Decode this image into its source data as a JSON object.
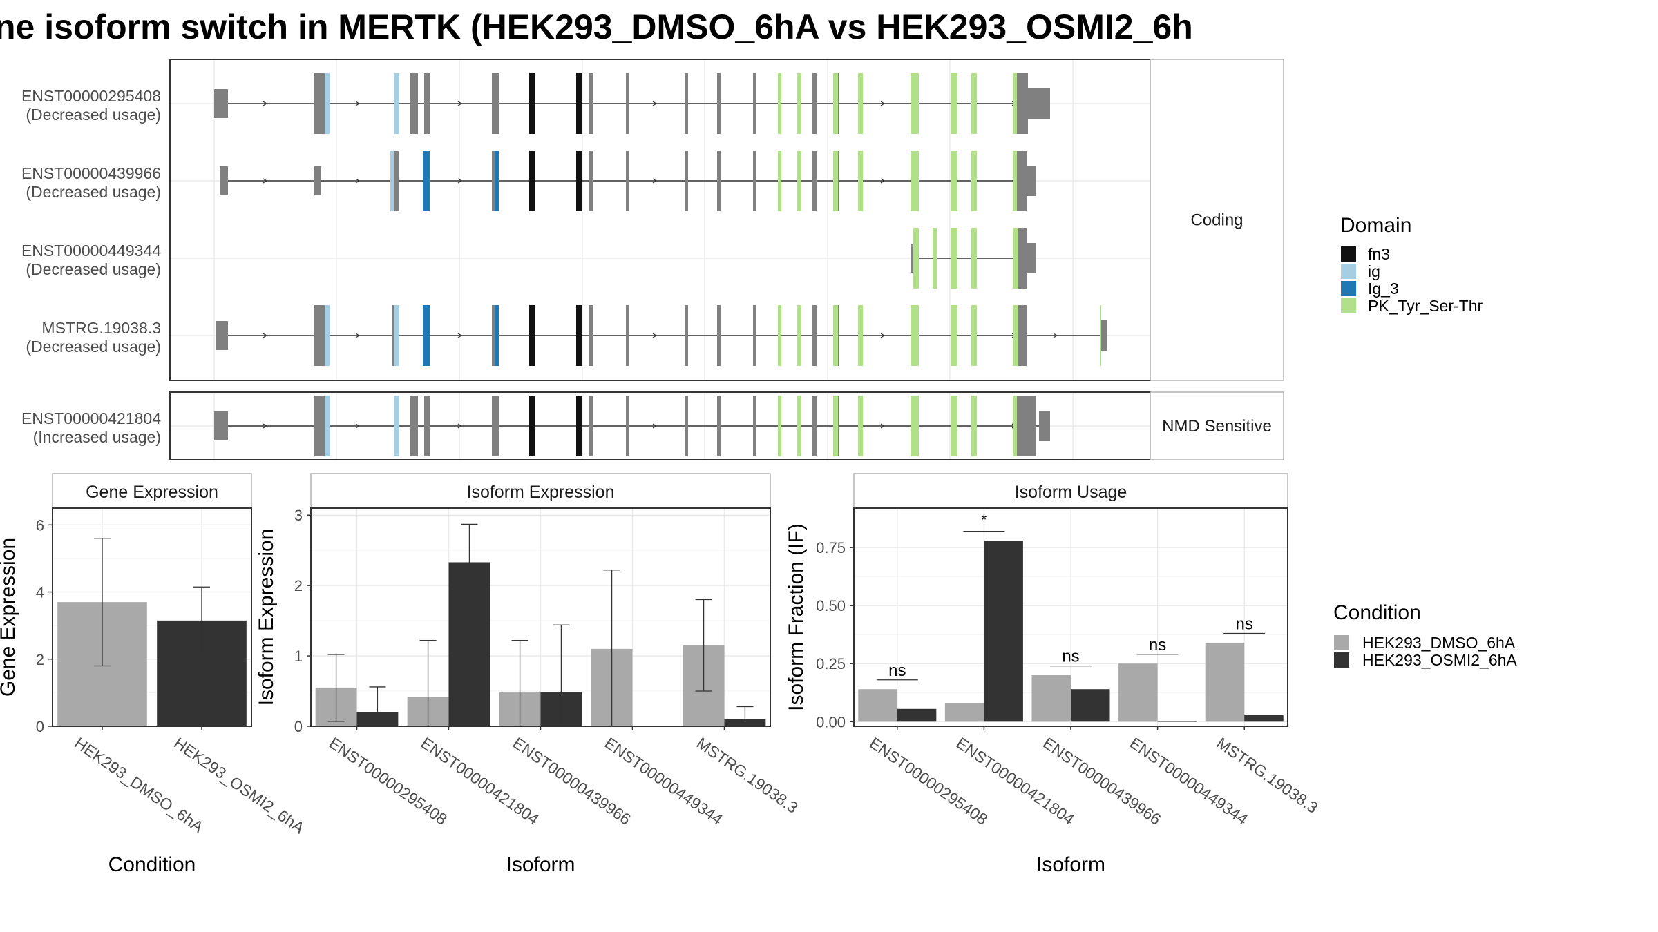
{
  "page": {
    "title": "ne isoform switch in MERTK (HEK293_DMSO_6hA vs HEK293_OSMI2_6h"
  },
  "colors": {
    "exon": "#808080",
    "fn3": "#111111",
    "ig": "#a6cee3",
    "Ig_3": "#1f78b4",
    "PK_Tyr_Ser-Thr": "#b2df8a",
    "dmso": "#a9a9a9",
    "osmi2": "#333333",
    "grid": "#ebebeb",
    "strip_bg": "#ffffff"
  },
  "transcript_panel": {
    "groups": [
      {
        "label": "Coding",
        "tracks": [
          {
            "name": "ENST00000295408",
            "usage": "(Decreased usage)"
          },
          {
            "name": "ENST00000439966",
            "usage": "(Decreased usage)"
          },
          {
            "name": "ENST00000449344",
            "usage": "(Decreased usage)"
          },
          {
            "name": "MSTRG.19038.3",
            "usage": "(Decreased usage)"
          }
        ]
      },
      {
        "label": "NMD Sensitive",
        "tracks": [
          {
            "name": "ENST00000421804",
            "usage": "(Increased usage)"
          }
        ]
      }
    ],
    "domain_legend": {
      "title": "Domain",
      "items": [
        "fn3",
        "ig",
        "Ig_3",
        "PK_Tyr_Ser-Thr"
      ]
    }
  },
  "chart_data": [
    {
      "type": "bar",
      "title": "Gene Expression",
      "xlabel": "Condition",
      "ylabel": "Gene Expression",
      "categories": [
        "HEK293_DMSO_6hA",
        "HEK293_OSMI2_6hA"
      ],
      "values": [
        3.7,
        3.15
      ],
      "errors": [
        [
          1.8,
          5.6
        ],
        [
          2.15,
          4.15
        ]
      ],
      "ylim": [
        0,
        6.5
      ],
      "yticks": [
        "0",
        "2",
        "4",
        "6"
      ],
      "grid": true
    },
    {
      "type": "bar",
      "title": "Isoform Expression",
      "xlabel": "Isoform",
      "ylabel": "Isoform Expression",
      "categories": [
        "ENST00000295408",
        "ENST00000421804",
        "ENST00000439966",
        "ENST00000449344",
        "MSTRG.19038.3"
      ],
      "series": [
        {
          "name": "HEK293_DMSO_6hA",
          "values": [
            0.55,
            0.42,
            0.48,
            1.1,
            1.15
          ],
          "errors": [
            [
              0.07,
              1.02
            ],
            [
              0.0,
              1.22
            ],
            [
              0.0,
              1.22
            ],
            [
              0.0,
              2.22
            ],
            [
              0.5,
              1.8
            ]
          ]
        },
        {
          "name": "HEK293_OSMI2_6hA",
          "values": [
            0.2,
            2.33,
            0.49,
            0.0,
            0.1
          ],
          "errors": [
            [
              0.0,
              0.56
            ],
            [
              1.8,
              2.87
            ],
            [
              0.0,
              1.44
            ],
            [
              0.0,
              0.0
            ],
            [
              0.0,
              0.28
            ]
          ]
        }
      ],
      "ylim": [
        0,
        3.1
      ],
      "yticks": [
        "0",
        "1",
        "2",
        "3"
      ],
      "grid": true
    },
    {
      "type": "bar",
      "title": "Isoform Usage",
      "xlabel": "Isoform",
      "ylabel": "Isoform Fraction (IF)",
      "categories": [
        "ENST00000295408",
        "ENST00000421804",
        "ENST00000439966",
        "ENST00000449344",
        "MSTRG.19038.3"
      ],
      "series": [
        {
          "name": "HEK293_DMSO_6hA",
          "values": [
            0.14,
            0.08,
            0.2,
            0.25,
            0.34
          ]
        },
        {
          "name": "HEK293_OSMI2_6hA",
          "values": [
            0.055,
            0.78,
            0.14,
            0.0,
            0.03
          ]
        }
      ],
      "significance": [
        "ns",
        "*",
        "ns",
        "ns",
        "ns"
      ],
      "sig_heights": [
        0.18,
        0.82,
        0.24,
        0.29,
        0.38
      ],
      "ylim": [
        -0.02,
        0.92
      ],
      "yticks": [
        "0.00",
        "0.25",
        "0.50",
        "0.75"
      ],
      "grid": true
    }
  ],
  "condition_legend": {
    "title": "Condition",
    "items": [
      "HEK293_DMSO_6hA",
      "HEK293_OSMI2_6hA"
    ]
  }
}
